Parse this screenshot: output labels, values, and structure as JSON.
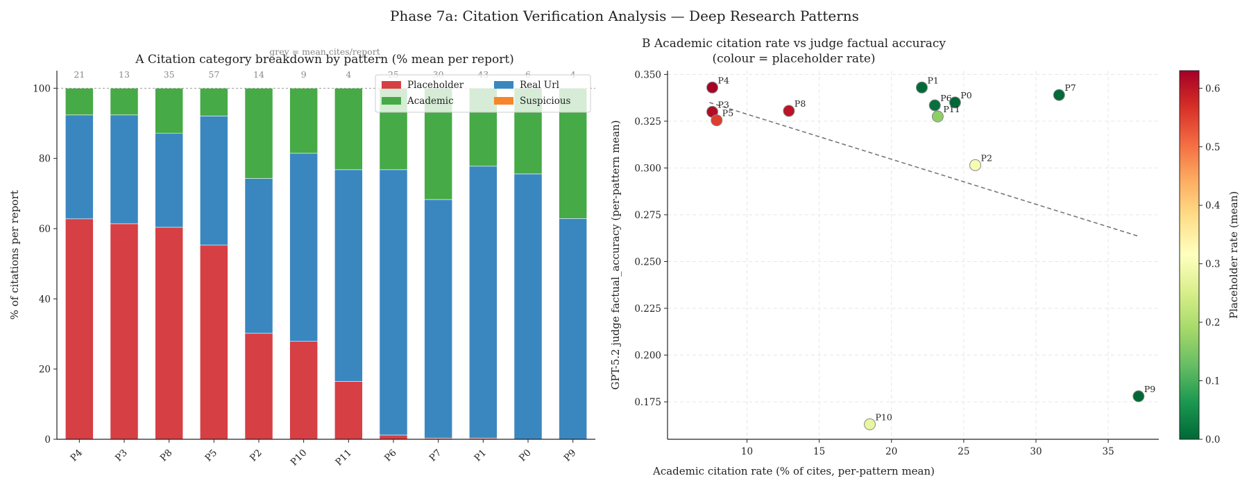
{
  "suptitle": "Phase 7a: Citation Verification Analysis — Deep Research Patterns",
  "panelA": {
    "title": "A  Citation category breakdown by pattern (% mean per report)",
    "ylabel": "% of citations per report",
    "grey_note": "grey = mean cites/report"
  },
  "panelB": {
    "title_line1": "B  Academic citation rate vs judge factual accuracy",
    "title_line2": "(colour = placeholder rate)",
    "xlabel": "Academic citation rate (% of cites, per-pattern mean)",
    "ylabel": "GPT-5.2 judge factual_accuracy (per-pattern mean)",
    "colorbar_label": "Placeholder rate (mean)"
  },
  "chart_data": [
    {
      "type": "bar",
      "stacked": true,
      "title": "A  Citation category breakdown by pattern (% mean per report)",
      "xlabel": "",
      "ylabel": "% of citations per report",
      "ylim": [
        0,
        105
      ],
      "yticks": [
        0,
        20,
        40,
        60,
        80,
        100
      ],
      "categories": [
        "P4",
        "P3",
        "P8",
        "P5",
        "P2",
        "P10",
        "P11",
        "P6",
        "P7",
        "P1",
        "P0",
        "P9"
      ],
      "series": [
        {
          "name": "Placeholder",
          "color": "#d63f44",
          "values": [
            62.8,
            61.4,
            60.4,
            55.3,
            30.2,
            27.9,
            16.5,
            1.2,
            0.3,
            0.3,
            0,
            0
          ]
        },
        {
          "name": "Real Url",
          "color": "#3a87c0",
          "values": [
            29.6,
            31.0,
            26.8,
            36.8,
            44.1,
            53.6,
            60.3,
            75.6,
            68.0,
            77.5,
            75.6,
            62.9
          ]
        },
        {
          "name": "Academic",
          "color": "#46aa46",
          "values": [
            7.6,
            7.6,
            12.8,
            7.9,
            25.7,
            18.5,
            23.2,
            23.2,
            31.7,
            22.2,
            24.4,
            37.1
          ]
        },
        {
          "name": "Suspicious",
          "color": "#f5862a",
          "values": [
            0,
            0,
            0,
            0,
            0,
            0,
            0,
            0,
            0,
            0,
            0,
            0
          ]
        }
      ],
      "mean_cites_per_report": [
        "21",
        "13",
        "35",
        "57",
        "14",
        "9",
        "4",
        "25",
        "30",
        "43",
        "6",
        "4"
      ],
      "reference_line": 100,
      "legend": "top-right",
      "grid": false
    },
    {
      "type": "scatter",
      "title": "B  Academic citation rate vs judge factual accuracy",
      "subtitle": "(colour = placeholder rate)",
      "xlabel": "Academic citation rate (% of cites, per-pattern mean)",
      "ylabel": "GPT-5.2 judge factual_accuracy (per-pattern mean)",
      "xlim": [
        4.5,
        38.5
      ],
      "ylim": [
        0.155,
        0.352
      ],
      "xticks": [
        10,
        15,
        20,
        25,
        30,
        35
      ],
      "yticks": [
        0.175,
        0.2,
        0.225,
        0.25,
        0.275,
        0.3,
        0.325,
        0.35
      ],
      "grid": true,
      "colorbar": {
        "label": "Placeholder rate (mean)",
        "min": 0,
        "max": 0.63,
        "ticks": [
          0.0,
          0.1,
          0.2,
          0.3,
          0.4,
          0.5,
          0.6
        ],
        "colormap": "RdYlGn_r"
      },
      "points": [
        {
          "label": "P4",
          "x": 7.6,
          "y": 0.343,
          "placeholder": 0.628
        },
        {
          "label": "P3",
          "x": 7.6,
          "y": 0.33,
          "placeholder": 0.614
        },
        {
          "label": "P5",
          "x": 7.9,
          "y": 0.3255,
          "placeholder": 0.553
        },
        {
          "label": "P8",
          "x": 12.9,
          "y": 0.3305,
          "placeholder": 0.604
        },
        {
          "label": "P1",
          "x": 22.1,
          "y": 0.343,
          "placeholder": 0.003
        },
        {
          "label": "P6",
          "x": 23.0,
          "y": 0.3335,
          "placeholder": 0.012
        },
        {
          "label": "P0",
          "x": 24.4,
          "y": 0.335,
          "placeholder": 0.0
        },
        {
          "label": "P11",
          "x": 23.2,
          "y": 0.3275,
          "placeholder": 0.165
        },
        {
          "label": "P7",
          "x": 31.6,
          "y": 0.339,
          "placeholder": 0.003
        },
        {
          "label": "P2",
          "x": 25.8,
          "y": 0.3015,
          "placeholder": 0.302
        },
        {
          "label": "P9",
          "x": 37.1,
          "y": 0.178,
          "placeholder": 0.0
        },
        {
          "label": "P10",
          "x": 18.5,
          "y": 0.163,
          "placeholder": 0.279
        }
      ],
      "trend_line": {
        "x": [
          7.4,
          37.1
        ],
        "y": [
          0.335,
          0.2635
        ]
      }
    }
  ]
}
